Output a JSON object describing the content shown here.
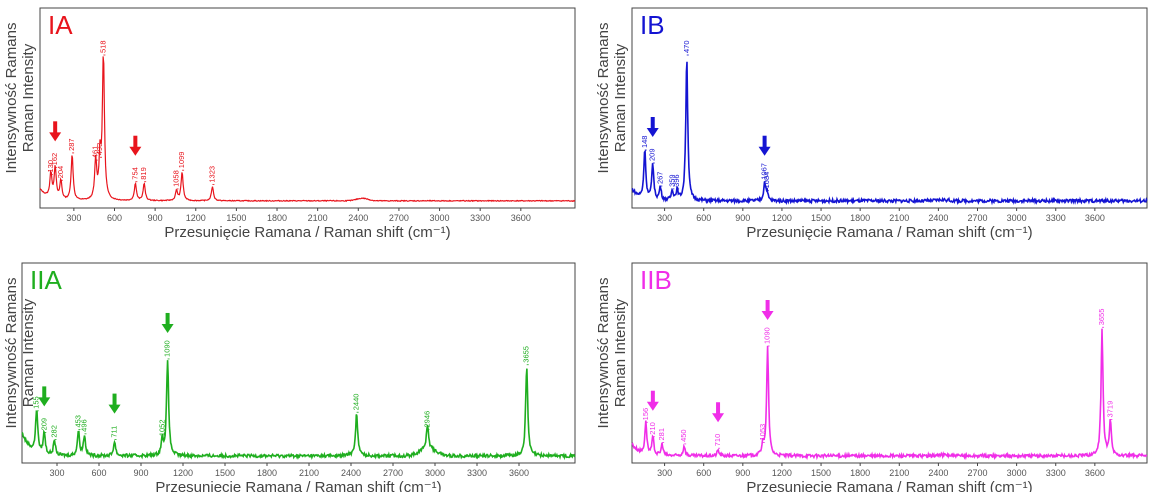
{
  "chart_data": [
    {
      "type": "line",
      "panel": "IA",
      "color": "#e8141c",
      "xlabel": "Przesunięcie Ramana / Raman shift (cm⁻¹)",
      "ylabel": [
        "Intensywność Ramans",
        "Raman Intensity"
      ],
      "xlim": [
        50,
        4000
      ],
      "xticks": [
        300,
        600,
        900,
        1200,
        1500,
        1800,
        2100,
        2400,
        2700,
        3000,
        3300,
        3600
      ],
      "peaks": [
        {
          "x": 130,
          "y": 0.17,
          "label": "130"
        },
        {
          "x": 162,
          "y": 0.22,
          "label": "162"
        },
        {
          "x": 204,
          "y": 0.13,
          "label": "204"
        },
        {
          "x": 287,
          "y": 0.32,
          "label": "287"
        },
        {
          "x": 461,
          "y": 0.27,
          "label": "461"
        },
        {
          "x": 493,
          "y": 0.29,
          "label": "493"
        },
        {
          "x": 518,
          "y": 1.0,
          "label": "518"
        },
        {
          "x": 754,
          "y": 0.12,
          "label": "754"
        },
        {
          "x": 819,
          "y": 0.12,
          "label": "819"
        },
        {
          "x": 1058,
          "y": 0.07,
          "label": "1058"
        },
        {
          "x": 1099,
          "y": 0.2,
          "label": "1099"
        },
        {
          "x": 1323,
          "y": 0.1,
          "label": "1323"
        }
      ],
      "arrows": [
        162,
        754
      ]
    },
    {
      "type": "line",
      "panel": "IB",
      "color": "#1414d2",
      "xlabel": "Przesunięcie Ramana / Raman shift (cm⁻¹)",
      "ylabel": [
        "Intensywność Ramans",
        "Raman Intensity"
      ],
      "xlim": [
        50,
        4000
      ],
      "xticks": [
        300,
        600,
        900,
        1200,
        1500,
        1800,
        2100,
        2400,
        2700,
        3000,
        3300,
        3600
      ],
      "peaks": [
        {
          "x": 148,
          "y": 0.34,
          "label": "148"
        },
        {
          "x": 209,
          "y": 0.25,
          "label": "209"
        },
        {
          "x": 267,
          "y": 0.09,
          "label": "267"
        },
        {
          "x": 359,
          "y": 0.07,
          "label": "359"
        },
        {
          "x": 396,
          "y": 0.07,
          "label": "396"
        },
        {
          "x": 470,
          "y": 1.0,
          "label": "470"
        },
        {
          "x": 1067,
          "y": 0.12,
          "label": "1067"
        },
        {
          "x": 1084,
          "y": 0.06,
          "label": "1084"
        }
      ],
      "arrows": [
        209,
        1067
      ]
    },
    {
      "type": "line",
      "panel": "IIA",
      "color": "#1fae1f",
      "xlabel": "Przesunięcie Ramana / Raman shift (cm⁻¹)",
      "ylabel": [
        "Intensywność Ramans",
        "Raman Intensity"
      ],
      "xlim": [
        50,
        4000
      ],
      "xticks": [
        300,
        600,
        900,
        1200,
        1500,
        1800,
        2100,
        2400,
        2700,
        3000,
        3300,
        3600
      ],
      "peaks": [
        {
          "x": 155,
          "y": 0.3,
          "label": "155"
        },
        {
          "x": 209,
          "y": 0.15,
          "label": "209"
        },
        {
          "x": 282,
          "y": 0.1,
          "label": "282"
        },
        {
          "x": 453,
          "y": 0.17,
          "label": "453"
        },
        {
          "x": 496,
          "y": 0.14,
          "label": "496"
        },
        {
          "x": 711,
          "y": 0.1,
          "label": "711"
        },
        {
          "x": 1052,
          "y": 0.11,
          "label": "1052"
        },
        {
          "x": 1090,
          "y": 0.66,
          "label": "1090"
        },
        {
          "x": 2440,
          "y": 0.29,
          "label": "2440"
        },
        {
          "x": 2946,
          "y": 0.17,
          "label": "2946"
        },
        {
          "x": 3655,
          "y": 0.62,
          "label": "3655"
        }
      ],
      "arrows": [
        209,
        711,
        1090
      ]
    },
    {
      "type": "line",
      "panel": "IIB",
      "color": "#f02ee8",
      "xlabel": "Przesunięcie Ramana / Raman shift (cm⁻¹)",
      "ylabel": [
        "Intensywność Ramans",
        "Raman Intensity"
      ],
      "xlim": [
        50,
        4000
      ],
      "xticks": [
        300,
        600,
        900,
        1200,
        1500,
        1800,
        2100,
        2400,
        2700,
        3000,
        3300,
        3600
      ],
      "peaks": [
        {
          "x": 156,
          "y": 0.22,
          "label": "156"
        },
        {
          "x": 210,
          "y": 0.12,
          "label": "210"
        },
        {
          "x": 281,
          "y": 0.08,
          "label": "281"
        },
        {
          "x": 450,
          "y": 0.07,
          "label": "450"
        },
        {
          "x": 710,
          "y": 0.04,
          "label": "710"
        },
        {
          "x": 1053,
          "y": 0.08,
          "label": "1053"
        },
        {
          "x": 1090,
          "y": 0.75,
          "label": "1090"
        },
        {
          "x": 3655,
          "y": 0.88,
          "label": "3655"
        },
        {
          "x": 3719,
          "y": 0.24,
          "label": "3719"
        }
      ],
      "arrows": [
        210,
        710,
        1090
      ]
    }
  ]
}
